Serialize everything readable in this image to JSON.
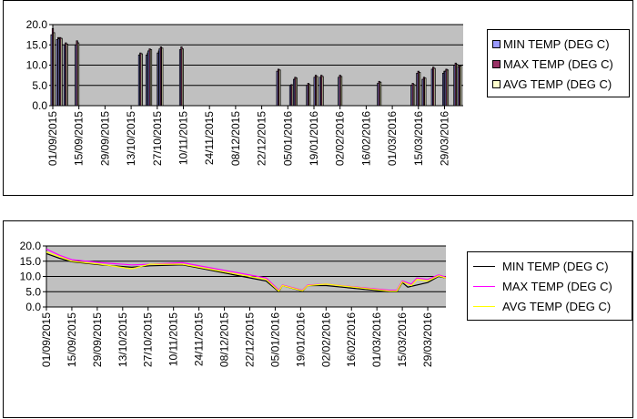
{
  "chart_data": [
    {
      "type": "bar",
      "title": "",
      "xlabel": "",
      "ylabel": "",
      "ylim": [
        0,
        20
      ],
      "y_ticks": [
        "0.0",
        "5.0",
        "10.0",
        "15.0",
        "20.0"
      ],
      "x_ticks": [
        "01/09/2015",
        "15/09/2015",
        "29/09/2015",
        "13/10/2015",
        "27/10/2015",
        "10/11/2015",
        "24/11/2015",
        "08/12/2015",
        "22/12/2015",
        "05/01/2016",
        "19/01/2016",
        "02/02/2016",
        "16/02/2016",
        "01/03/2016",
        "15/03/2016",
        "29/03/2016"
      ],
      "x_range": [
        "2015-09-01",
        "2016-04-08"
      ],
      "grid": "horizontal",
      "plot_background": "#c0c0c0",
      "legend_position": "right",
      "legend": [
        "MIN TEMP (DEG C)",
        "MAX TEMP (DEG C)",
        "AVG TEMP (DEG C)"
      ],
      "colors": [
        "#9999ff",
        "#993366",
        "#ffffcc"
      ],
      "dates": [
        "2015-09-01",
        "2015-09-04",
        "2015-09-05",
        "2015-09-08",
        "2015-09-14",
        "2015-10-18",
        "2015-10-22",
        "2015-10-23",
        "2015-10-28",
        "2015-10-29",
        "2015-11-09",
        "2015-12-31",
        "2016-01-07",
        "2016-01-09",
        "2016-01-16",
        "2016-01-20",
        "2016-01-23",
        "2016-02-02",
        "2016-02-23",
        "2016-03-12",
        "2016-03-15",
        "2016-03-18",
        "2016-03-23",
        "2016-03-29",
        "2016-03-30",
        "2016-04-04",
        "2016-04-06"
      ],
      "series": [
        {
          "name": "MIN TEMP (DEG C)",
          "values": [
            17.5,
            16.3,
            16.5,
            15.0,
            15.0,
            12.5,
            12.5,
            13.5,
            13.0,
            14.0,
            13.8,
            8.5,
            5.0,
            6.5,
            5.0,
            7.0,
            7.0,
            7.0,
            5.5,
            5.0,
            8.0,
            6.5,
            9.0,
            8.0,
            8.5,
            10.0,
            9.5
          ]
        },
        {
          "name": "MAX TEMP (DEG C)",
          "values": [
            19.0,
            16.8,
            16.8,
            15.5,
            16.0,
            13.0,
            13.0,
            14.0,
            13.5,
            14.5,
            14.5,
            9.0,
            5.2,
            7.0,
            5.5,
            7.5,
            7.5,
            7.5,
            6.0,
            5.5,
            8.5,
            7.0,
            9.5,
            8.5,
            9.0,
            10.5,
            10.0
          ]
        },
        {
          "name": "AVG TEMP (DEG C)",
          "values": [
            18.0,
            16.5,
            16.6,
            15.2,
            15.5,
            12.8,
            12.8,
            13.8,
            13.2,
            14.2,
            14.0,
            8.8,
            5.1,
            6.8,
            5.2,
            7.2,
            7.2,
            7.2,
            5.8,
            5.2,
            8.2,
            6.8,
            9.2,
            8.2,
            8.8,
            10.2,
            9.8
          ]
        }
      ]
    },
    {
      "type": "line",
      "title": "",
      "xlabel": "",
      "ylabel": "",
      "ylim": [
        0,
        20
      ],
      "y_ticks": [
        "0.0",
        "5.0",
        "10.0",
        "15.0",
        "20.0"
      ],
      "x_ticks": [
        "01/09/2015",
        "15/09/2015",
        "29/09/2015",
        "13/10/2015",
        "27/10/2015",
        "10/11/2015",
        "24/11/2015",
        "08/12/2015",
        "22/12/2015",
        "05/01/2016",
        "19/01/2016",
        "02/02/2016",
        "16/02/2016",
        "01/03/2016",
        "15/03/2016",
        "29/03/2016"
      ],
      "x_range": [
        "2015-09-01",
        "2016-04-08"
      ],
      "grid": "horizontal",
      "plot_background": "#c0c0c0",
      "legend_position": "right",
      "legend": [
        "MIN TEMP (DEG C)",
        "MAX TEMP (DEG C)",
        "AVG TEMP (DEG C)"
      ],
      "colors": [
        "#000000",
        "#ff00ff",
        "#ffff00"
      ],
      "series": [
        {
          "name": "MIN TEMP (DEG C)",
          "points": [
            [
              "2015-09-01",
              17.5
            ],
            [
              "2015-09-08",
              16.0
            ],
            [
              "2015-09-15",
              14.8
            ],
            [
              "2015-10-01",
              13.8
            ],
            [
              "2015-10-18",
              13.0
            ],
            [
              "2015-10-28",
              13.5
            ],
            [
              "2015-11-15",
              13.8
            ],
            [
              "2015-12-31",
              8.5
            ],
            [
              "2016-01-07",
              5.0
            ],
            [
              "2016-01-09",
              7.0
            ],
            [
              "2016-01-20",
              5.2
            ],
            [
              "2016-01-23",
              7.0
            ],
            [
              "2016-02-02",
              7.0
            ],
            [
              "2016-03-08",
              5.0
            ],
            [
              "2016-03-12",
              5.0
            ],
            [
              "2016-03-15",
              8.0
            ],
            [
              "2016-03-18",
              6.5
            ],
            [
              "2016-03-29",
              8.0
            ],
            [
              "2016-04-04",
              10.0
            ],
            [
              "2016-04-08",
              9.5
            ]
          ]
        },
        {
          "name": "MAX TEMP (DEG C)",
          "points": [
            [
              "2015-09-01",
              19.0
            ],
            [
              "2015-09-08",
              17.0
            ],
            [
              "2015-09-15",
              15.5
            ],
            [
              "2015-10-01",
              14.5
            ],
            [
              "2015-10-18",
              13.8
            ],
            [
              "2015-10-28",
              14.0
            ],
            [
              "2015-11-15",
              14.5
            ],
            [
              "2015-12-31",
              9.5
            ],
            [
              "2016-01-07",
              5.5
            ],
            [
              "2016-01-09",
              7.2
            ],
            [
              "2016-01-20",
              5.5
            ],
            [
              "2016-01-23",
              7.2
            ],
            [
              "2016-02-02",
              7.5
            ],
            [
              "2016-03-08",
              5.5
            ],
            [
              "2016-03-12",
              5.5
            ],
            [
              "2016-03-15",
              8.5
            ],
            [
              "2016-03-20",
              7.5
            ],
            [
              "2016-03-23",
              9.5
            ],
            [
              "2016-03-29",
              9.0
            ],
            [
              "2016-04-04",
              10.5
            ],
            [
              "2016-04-08",
              9.8
            ]
          ]
        },
        {
          "name": "AVG TEMP (DEG C)",
          "points": [
            [
              "2015-09-01",
              18.0
            ],
            [
              "2015-09-08",
              16.5
            ],
            [
              "2015-09-15",
              15.0
            ],
            [
              "2015-10-01",
              14.0
            ],
            [
              "2015-10-18",
              12.5
            ],
            [
              "2015-10-28",
              14.0
            ],
            [
              "2015-11-15",
              14.0
            ],
            [
              "2015-12-31",
              9.0
            ],
            [
              "2016-01-07",
              5.2
            ],
            [
              "2016-01-09",
              7.0
            ],
            [
              "2016-01-20",
              5.3
            ],
            [
              "2016-01-23",
              7.0
            ],
            [
              "2016-02-02",
              7.5
            ],
            [
              "2016-03-08",
              5.2
            ],
            [
              "2016-03-12",
              5.2
            ],
            [
              "2016-03-15",
              8.2
            ],
            [
              "2016-03-20",
              7.0
            ],
            [
              "2016-03-23",
              9.0
            ],
            [
              "2016-03-29",
              8.5
            ],
            [
              "2016-04-04",
              10.2
            ],
            [
              "2016-04-08",
              9.5
            ]
          ]
        }
      ]
    }
  ]
}
